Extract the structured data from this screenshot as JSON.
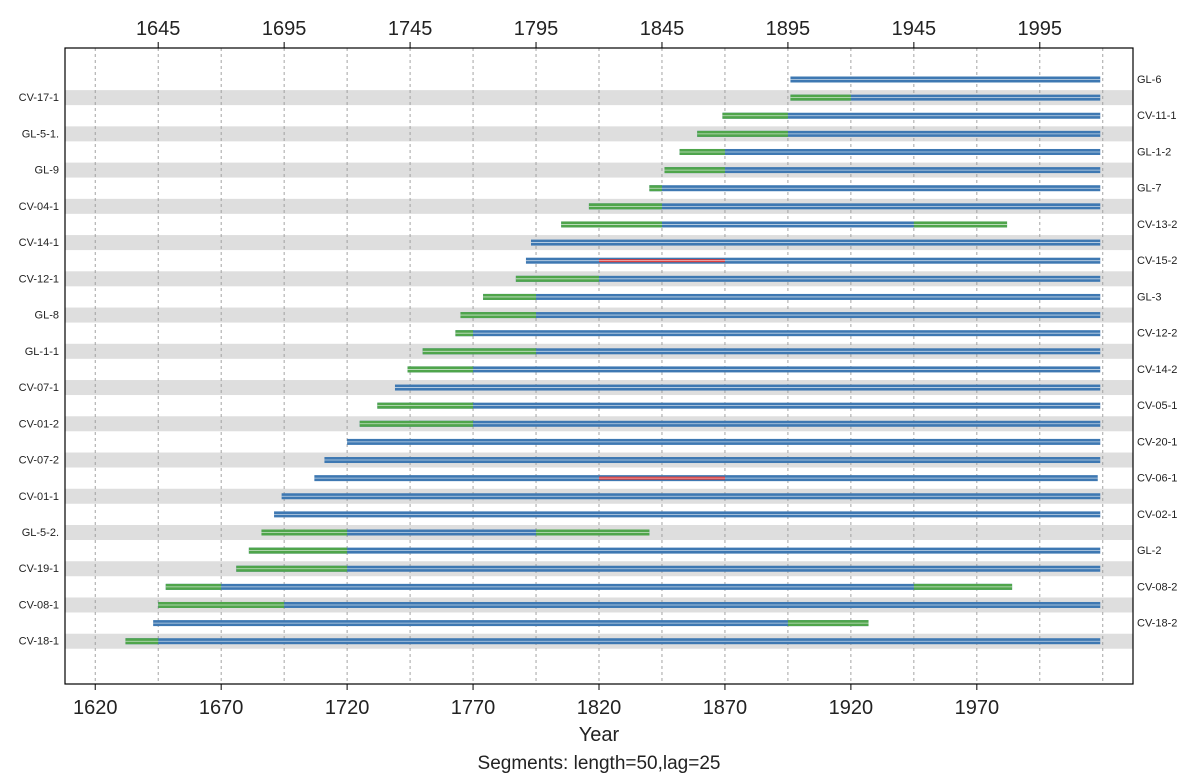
{
  "chart_data": {
    "type": "bar",
    "title": "",
    "xlabel": "Year",
    "subtitle": "Segments: length=50,lag=25",
    "xlim": [
      1608,
      2032
    ],
    "x_ticks_bottom": [
      1620,
      1670,
      1720,
      1770,
      1820,
      1870,
      1920,
      1970
    ],
    "x_ticks_top": [
      1645,
      1695,
      1745,
      1795,
      1845,
      1895,
      1945,
      1995
    ],
    "grid": "vertical dotted",
    "legend": "none",
    "colors": {
      "correlated": "#3e78b2",
      "uncorrelated": "#4fa54b",
      "flagged": "#d93030",
      "band": "#dedede"
    },
    "series": [
      {
        "name": "GL-6",
        "start": 1896,
        "end": 2019,
        "segments": []
      },
      {
        "name": "CV-17-1",
        "start": 1896,
        "end": 2019,
        "segments": [
          [
            1896,
            1920,
            "g"
          ]
        ]
      },
      {
        "name": "CV-11-1",
        "start": 1869,
        "end": 2019,
        "segments": [
          [
            1869,
            1895,
            "g"
          ]
        ]
      },
      {
        "name": "GL-5-1.",
        "start": 1859,
        "end": 2019,
        "segments": [
          [
            1859,
            1895,
            "g"
          ]
        ]
      },
      {
        "name": "GL-1-2",
        "start": 1852,
        "end": 2019,
        "segments": [
          [
            1852,
            1870,
            "g"
          ]
        ]
      },
      {
        "name": "GL-9",
        "start": 1846,
        "end": 2019,
        "segments": [
          [
            1846,
            1870,
            "g"
          ]
        ]
      },
      {
        "name": "GL-7",
        "start": 1840,
        "end": 2019,
        "segments": [
          [
            1840,
            1845,
            "g"
          ]
        ]
      },
      {
        "name": "CV-04-1",
        "start": 1816,
        "end": 2019,
        "segments": [
          [
            1816,
            1845,
            "g"
          ]
        ]
      },
      {
        "name": "CV-13-2",
        "start": 1805,
        "end": 1982,
        "segments": [
          [
            1805,
            1845,
            "g"
          ],
          [
            1945,
            1982,
            "g"
          ]
        ]
      },
      {
        "name": "CV-14-1",
        "start": 1793,
        "end": 2019,
        "segments": []
      },
      {
        "name": "CV-15-2",
        "start": 1791,
        "end": 2019,
        "segments": [
          [
            1820,
            1870,
            "r"
          ]
        ]
      },
      {
        "name": "CV-12-1",
        "start": 1787,
        "end": 2019,
        "segments": [
          [
            1787,
            1820,
            "g"
          ]
        ]
      },
      {
        "name": "GL-3",
        "start": 1774,
        "end": 2019,
        "segments": [
          [
            1774,
            1795,
            "g"
          ]
        ]
      },
      {
        "name": "GL-8",
        "start": 1765,
        "end": 2019,
        "segments": [
          [
            1765,
            1795,
            "g"
          ]
        ]
      },
      {
        "name": "CV-12-2",
        "start": 1763,
        "end": 2019,
        "segments": [
          [
            1763,
            1770,
            "g"
          ]
        ]
      },
      {
        "name": "GL-1-1",
        "start": 1750,
        "end": 2019,
        "segments": [
          [
            1750,
            1795,
            "g"
          ]
        ]
      },
      {
        "name": "CV-14-2",
        "start": 1744,
        "end": 2019,
        "segments": [
          [
            1744,
            1770,
            "g"
          ]
        ]
      },
      {
        "name": "CV-07-1",
        "start": 1739,
        "end": 2019,
        "segments": []
      },
      {
        "name": "CV-05-1",
        "start": 1732,
        "end": 2019,
        "segments": [
          [
            1732,
            1770,
            "g"
          ]
        ]
      },
      {
        "name": "CV-01-2",
        "start": 1725,
        "end": 2019,
        "segments": [
          [
            1725,
            1770,
            "g"
          ]
        ]
      },
      {
        "name": "CV-20-1",
        "start": 1720,
        "end": 2019,
        "segments": []
      },
      {
        "name": "CV-07-2",
        "start": 1711,
        "end": 2019,
        "segments": []
      },
      {
        "name": "CV-06-1",
        "start": 1707,
        "end": 2018,
        "segments": [
          [
            1820,
            1870,
            "r"
          ]
        ]
      },
      {
        "name": "CV-01-1",
        "start": 1694,
        "end": 2019,
        "segments": []
      },
      {
        "name": "CV-02-1",
        "start": 1691,
        "end": 2019,
        "segments": []
      },
      {
        "name": "GL-5-2.",
        "start": 1686,
        "end": 1840,
        "segments": [
          [
            1686,
            1720,
            "g"
          ],
          [
            1795,
            1840,
            "g"
          ]
        ]
      },
      {
        "name": "GL-2",
        "start": 1681,
        "end": 2019,
        "segments": [
          [
            1681,
            1720,
            "g"
          ]
        ]
      },
      {
        "name": "CV-19-1",
        "start": 1676,
        "end": 2019,
        "segments": [
          [
            1676,
            1720,
            "g"
          ]
        ]
      },
      {
        "name": "CV-08-2",
        "start": 1648,
        "end": 1984,
        "segments": [
          [
            1648,
            1670,
            "g"
          ],
          [
            1945,
            1984,
            "g"
          ]
        ]
      },
      {
        "name": "CV-08-1",
        "start": 1645,
        "end": 2019,
        "segments": [
          [
            1645,
            1695,
            "g"
          ]
        ]
      },
      {
        "name": "CV-18-2",
        "start": 1643,
        "end": 1927,
        "segments": [
          [
            1895,
            1927,
            "g"
          ]
        ]
      },
      {
        "name": "CV-18-1",
        "start": 1632,
        "end": 2019,
        "segments": [
          [
            1632,
            1645,
            "g"
          ]
        ]
      }
    ]
  }
}
